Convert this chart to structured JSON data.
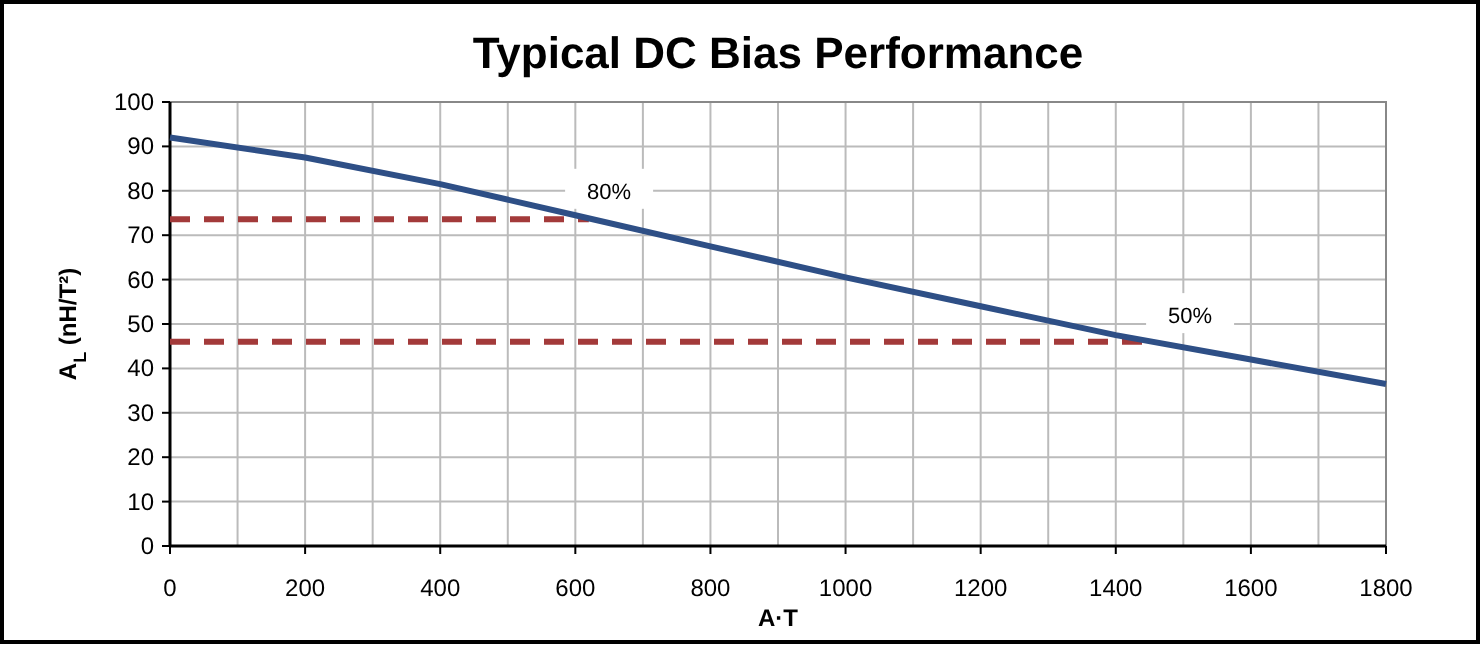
{
  "chart_data": {
    "type": "line",
    "title": "Typical DC Bias Performance",
    "xlabel": "A·T",
    "ylabel": "A$_{L}$ (nH/T²)",
    "series": [
      {
        "color": "#2e4f86",
        "x": [
          0,
          200,
          400,
          600,
          800,
          1000,
          1200,
          1400,
          1600,
          1800
        ],
        "values": [
          92,
          87.5,
          81.5,
          74.5,
          67.5,
          60.5,
          54,
          47.5,
          42,
          36.5
        ]
      },
      {
        "color": "#a33a3a",
        "line_style": "dashed",
        "x": [
          0,
          620
        ],
        "values": [
          73.6,
          73.6
        ]
      },
      {
        "color": "#a33a3a",
        "line_style": "dashed",
        "x": [
          0,
          1450
        ],
        "values": [
          46,
          46
        ]
      }
    ],
    "annotations": [
      {
        "text": "80%",
        "x": 650,
        "y": 80
      },
      {
        "text": "50%",
        "x": 1510,
        "y": 52
      }
    ],
    "xlim": [
      0,
      1800
    ],
    "xticks": [
      0,
      {
        "value": 100,
        "label": null
      },
      200,
      {
        "value": 300,
        "label": null
      },
      400,
      {
        "value": 500,
        "label": null
      },
      600,
      {
        "value": 700,
        "label": null
      },
      800,
      {
        "value": 900,
        "label": null
      },
      1000,
      {
        "value": 1100,
        "label": null
      },
      1200,
      {
        "value": 1300,
        "label": null
      },
      1400,
      {
        "value": 1500,
        "label": null
      },
      1600,
      {
        "value": 1700,
        "label": null
      },
      1800
    ],
    "ylim": [
      0,
      100
    ],
    "yticks": [
      0,
      10,
      20,
      30,
      40,
      50,
      60,
      70,
      80,
      90,
      100
    ],
    "grid": true,
    "marker": "none",
    "line_style": "solid"
  }
}
